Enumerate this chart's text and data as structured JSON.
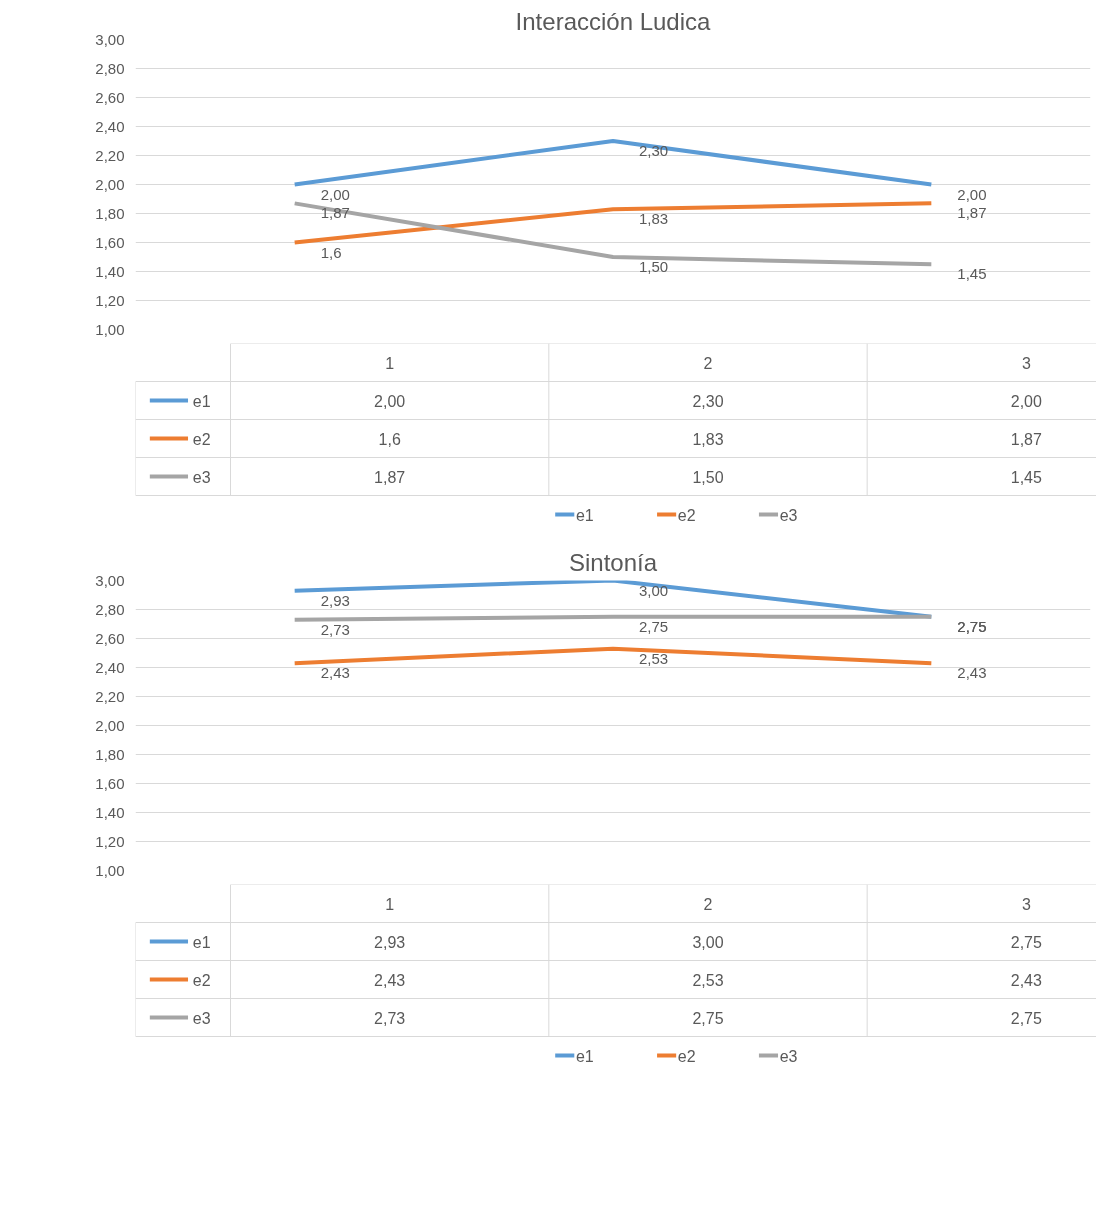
{
  "chart_data": [
    {
      "type": "line",
      "title": "Interacción Ludica",
      "categories": [
        "1",
        "2",
        "3"
      ],
      "ylim": [
        1,
        3
      ],
      "yticks": [
        {
          "value": 1,
          "label": "1,00"
        },
        {
          "value": 1.2,
          "label": "1,20"
        },
        {
          "value": 1.4,
          "label": "1,40"
        },
        {
          "value": 1.6,
          "label": "1,60"
        },
        {
          "value": 1.8,
          "label": "1,80"
        },
        {
          "value": 2,
          "label": "2,00"
        },
        {
          "value": 2.2,
          "label": "2,20"
        },
        {
          "value": 2.4,
          "label": "2,40"
        },
        {
          "value": 2.6,
          "label": "2,60"
        },
        {
          "value": 2.8,
          "label": "2,80"
        },
        {
          "value": 3,
          "label": "3,00"
        }
      ],
      "grid": "y",
      "legend": "bottom",
      "series": [
        {
          "name": "e1",
          "color": "#5b9bd5",
          "values": [
            2.0,
            2.3,
            2.0
          ],
          "value_labels": [
            "2,00",
            "2,30",
            "2,00"
          ]
        },
        {
          "name": "e2",
          "color": "#ed7d31",
          "values": [
            1.6,
            1.83,
            1.87
          ],
          "value_labels": [
            "1,6",
            "1,83",
            "1,87"
          ]
        },
        {
          "name": "e3",
          "color": "#a5a5a5",
          "values": [
            1.87,
            1.5,
            1.45
          ],
          "value_labels": [
            "1,87",
            "1,50",
            "1,45"
          ]
        }
      ]
    },
    {
      "type": "line",
      "title": "Sintonía",
      "categories": [
        "1",
        "2",
        "3"
      ],
      "ylim": [
        1,
        3
      ],
      "yticks": [
        {
          "value": 1,
          "label": "1,00"
        },
        {
          "value": 1.2,
          "label": "1,20"
        },
        {
          "value": 1.4,
          "label": "1,40"
        },
        {
          "value": 1.6,
          "label": "1,60"
        },
        {
          "value": 1.8,
          "label": "1,80"
        },
        {
          "value": 2,
          "label": "2,00"
        },
        {
          "value": 2.2,
          "label": "2,20"
        },
        {
          "value": 2.4,
          "label": "2,40"
        },
        {
          "value": 2.6,
          "label": "2,60"
        },
        {
          "value": 2.8,
          "label": "2,80"
        },
        {
          "value": 3,
          "label": "3,00"
        }
      ],
      "grid": "y",
      "legend": "bottom",
      "series": [
        {
          "name": "e1",
          "color": "#5b9bd5",
          "values": [
            2.93,
            3.0,
            2.75
          ],
          "value_labels": [
            "2,93",
            "3,00",
            "2,75"
          ]
        },
        {
          "name": "e2",
          "color": "#ed7d31",
          "values": [
            2.43,
            2.53,
            2.43
          ],
          "value_labels": [
            "2,43",
            "2,53",
            "2,43"
          ]
        },
        {
          "name": "e3",
          "color": "#a5a5a5",
          "values": [
            2.73,
            2.75,
            2.75
          ],
          "value_labels": [
            "2,73",
            "2,75",
            "2,75"
          ]
        }
      ]
    }
  ]
}
